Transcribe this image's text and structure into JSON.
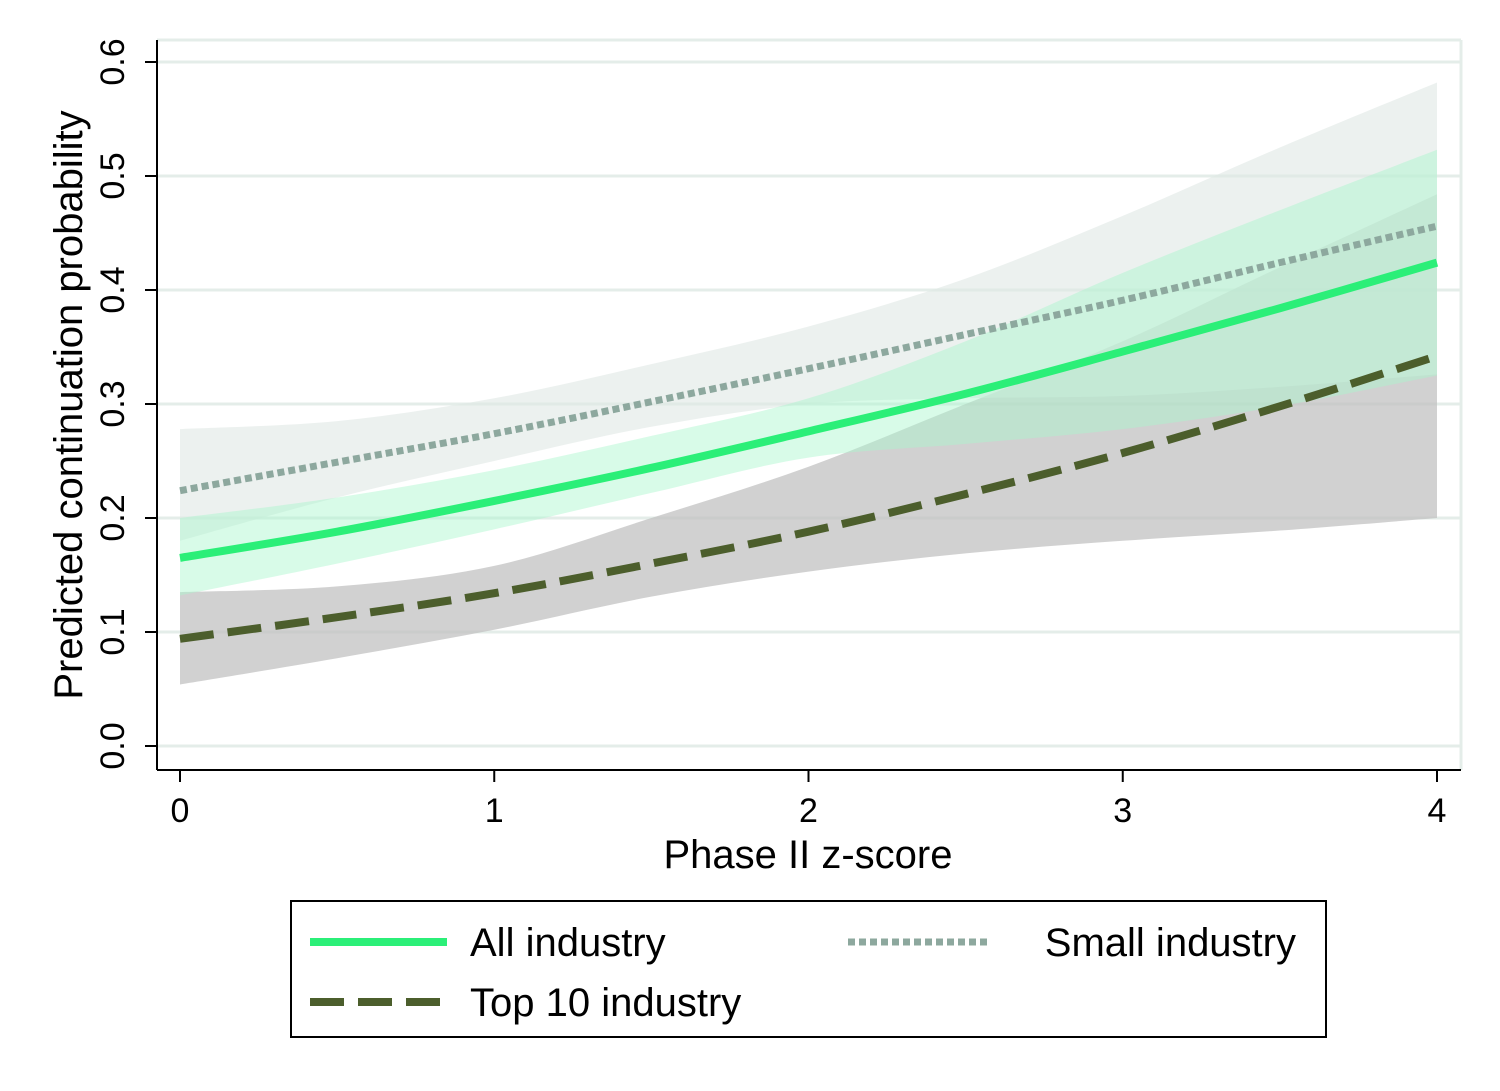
{
  "chart_data": {
    "type": "line",
    "title": "",
    "xlabel": "Phase II z-score",
    "ylabel": "Predicted continuation probability",
    "xlim": [
      0,
      4
    ],
    "ylim": [
      0,
      0.6
    ],
    "xticks": [
      "0",
      "1",
      "2",
      "3",
      "4"
    ],
    "yticks": [
      "0.0",
      "0.1",
      "0.2",
      "0.3",
      "0.4",
      "0.5",
      "0.6"
    ],
    "grid": true,
    "legend_position": "bottom",
    "x": [
      0,
      0.5,
      1,
      1.5,
      2,
      2.5,
      3,
      3.5,
      4
    ],
    "series": [
      {
        "name": "All industry",
        "style": "solid",
        "color": "#2bef78",
        "band_color": "#a8f7cc",
        "values": [
          0.165,
          0.188,
          0.215,
          0.244,
          0.276,
          0.309,
          0.346,
          0.384,
          0.424
        ],
        "lower": [
          0.132,
          0.16,
          0.19,
          0.222,
          0.253,
          0.265,
          0.278,
          0.298,
          0.325
        ],
        "upper": [
          0.2,
          0.218,
          0.242,
          0.272,
          0.305,
          0.355,
          0.415,
          0.47,
          0.523
        ]
      },
      {
        "name": "Small industry",
        "style": "dotted",
        "color": "#8da89e",
        "band_color": "#dfe8e5",
        "values": [
          0.224,
          0.249,
          0.274,
          0.302,
          0.331,
          0.361,
          0.391,
          0.424,
          0.456
        ],
        "lower": [
          0.18,
          0.218,
          0.25,
          0.28,
          0.3,
          0.305,
          0.307,
          0.315,
          0.326
        ],
        "upper": [
          0.278,
          0.285,
          0.305,
          0.335,
          0.368,
          0.41,
          0.465,
          0.525,
          0.582
        ]
      },
      {
        "name": "Top 10 industry",
        "style": "dashed",
        "color": "#4c5e2c",
        "band_color": "#bfbfbf",
        "values": [
          0.094,
          0.113,
          0.134,
          0.16,
          0.188,
          0.221,
          0.257,
          0.298,
          0.342
        ],
        "lower": [
          0.054,
          0.077,
          0.102,
          0.131,
          0.153,
          0.169,
          0.18,
          0.189,
          0.2
        ],
        "upper": [
          0.135,
          0.14,
          0.158,
          0.2,
          0.245,
          0.3,
          0.355,
          0.42,
          0.484
        ]
      }
    ]
  }
}
